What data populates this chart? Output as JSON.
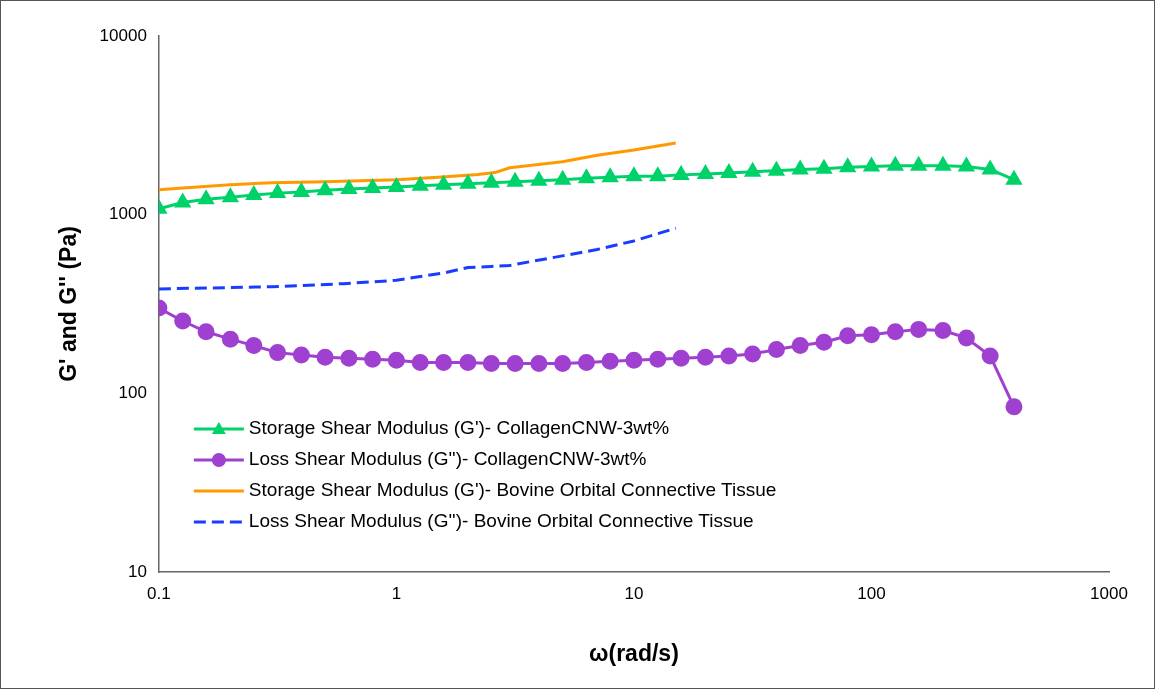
{
  "chart_data": {
    "type": "line",
    "xlabel": "ω(rad/s)",
    "ylabel": "G' and G'' (Pa)",
    "log": "xy",
    "xlim": [
      0.1,
      1000
    ],
    "ylim": [
      10,
      10000
    ],
    "xticks": [
      0.1,
      1,
      10,
      100,
      1000
    ],
    "yticks": [
      10,
      100,
      1000,
      10000
    ],
    "grid": false,
    "legend": "bottom left",
    "series": [
      {
        "name": "Storage Shear Modulus (G')- CollagenCNW-3wt%",
        "color": "#00d26a",
        "marker": "triangle",
        "line_style": "solid",
        "x": [
          0.1,
          0.126,
          0.158,
          0.2,
          0.251,
          0.316,
          0.398,
          0.501,
          0.631,
          0.794,
          1,
          1.26,
          1.58,
          2,
          2.51,
          3.16,
          3.98,
          5.01,
          6.31,
          7.94,
          10,
          12.6,
          15.8,
          20,
          25.1,
          31.6,
          39.8,
          50.1,
          63.1,
          79.4,
          100,
          126,
          158,
          200,
          251,
          316,
          398
        ],
        "values": [
          1080,
          1170,
          1220,
          1250,
          1290,
          1320,
          1340,
          1370,
          1390,
          1410,
          1430,
          1450,
          1470,
          1490,
          1510,
          1530,
          1550,
          1570,
          1600,
          1620,
          1640,
          1640,
          1670,
          1690,
          1710,
          1740,
          1760,
          1790,
          1810,
          1840,
          1860,
          1880,
          1880,
          1880,
          1860,
          1790,
          1570
        ]
      },
      {
        "name": "Loss Shear Modulus (G'')- CollagenCNW-3wt%",
        "color": "#a040d0",
        "marker": "circle",
        "line_style": "solid",
        "x": [
          0.1,
          0.126,
          0.158,
          0.2,
          0.251,
          0.316,
          0.398,
          0.501,
          0.631,
          0.794,
          1,
          1.26,
          1.58,
          2,
          2.51,
          3.16,
          3.98,
          5.01,
          6.31,
          7.94,
          10,
          12.6,
          15.8,
          20,
          25.1,
          31.6,
          39.8,
          50.1,
          63.1,
          79.4,
          100,
          126,
          158,
          200,
          251,
          316,
          398
        ],
        "values": [
          300,
          254,
          221,
          201,
          185,
          169,
          164,
          159,
          157,
          155,
          153,
          149,
          149,
          149,
          147,
          147,
          147,
          147,
          149,
          151,
          153,
          155,
          157,
          159,
          162,
          166,
          176,
          185,
          193,
          210,
          213,
          221,
          228,
          225,
          204,
          162,
          84
        ]
      },
      {
        "name": "Storage Shear Modulus (G')- Bovine Orbital Connective Tissue",
        "color": "#ff9900",
        "marker": "none",
        "line_style": "solid",
        "x": [
          0.1,
          0.126,
          0.2,
          0.3,
          0.5,
          1,
          1.5,
          2.2,
          2.6,
          3,
          5,
          7,
          10,
          15
        ],
        "values": [
          1380,
          1410,
          1470,
          1510,
          1530,
          1570,
          1620,
          1680,
          1720,
          1830,
          1980,
          2150,
          2300,
          2520
        ]
      },
      {
        "name": "Loss Shear Modulus (G'')- Bovine Orbital Connective Tissue",
        "color": "#1a3cff",
        "marker": "none",
        "line_style": "dashed",
        "x": [
          0.1,
          0.3,
          0.6,
          1,
          1.2,
          1.6,
          2,
          2.5,
          3,
          5,
          7,
          10,
          15
        ],
        "values": [
          384,
          395,
          411,
          429,
          446,
          473,
          506,
          513,
          520,
          588,
          638,
          713,
          840
        ]
      }
    ]
  }
}
